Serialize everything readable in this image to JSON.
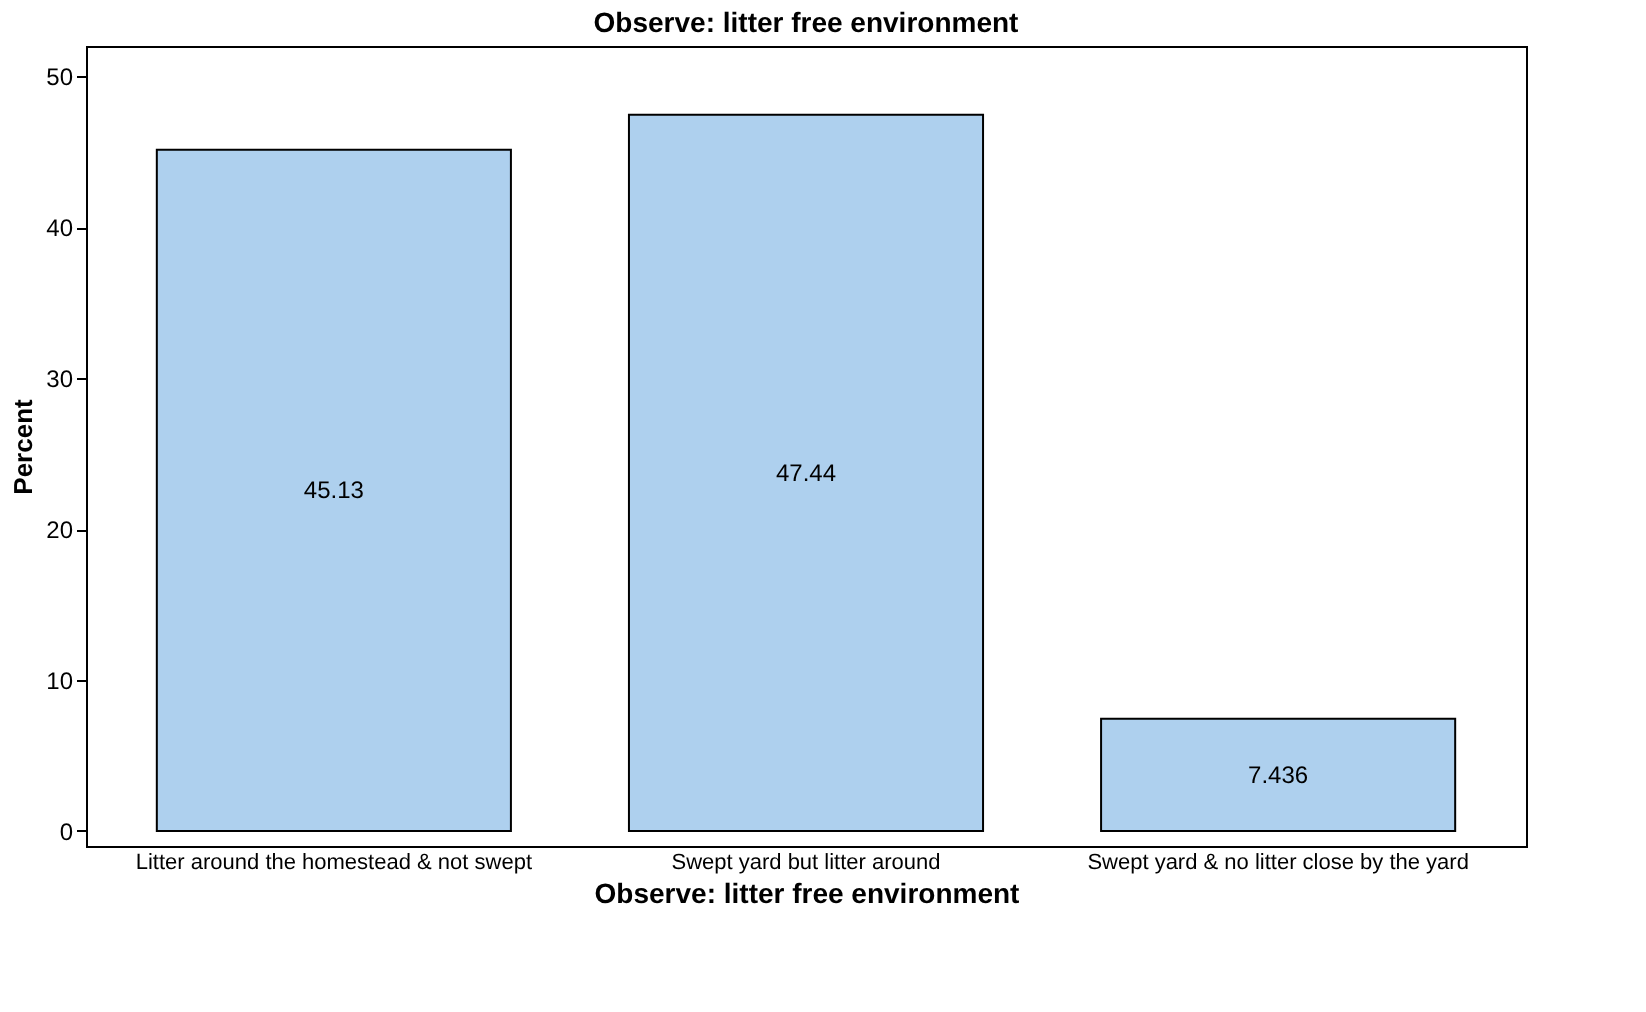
{
  "chart_data": {
    "type": "bar",
    "title": "Observe: litter free environment",
    "xlabel": "Observe: litter free environment",
    "ylabel": "Percent",
    "categories": [
      "Litter around the homestead & not swept",
      "Swept yard but litter around",
      "Swept yard & no litter close by the yard"
    ],
    "values": [
      45.13,
      47.44,
      7.436
    ],
    "color": "#aed0ee",
    "data_labels": true,
    "ylim": [
      -1,
      52
    ],
    "yticks": [
      0,
      10,
      20,
      30,
      40,
      50
    ],
    "grid": false
  }
}
